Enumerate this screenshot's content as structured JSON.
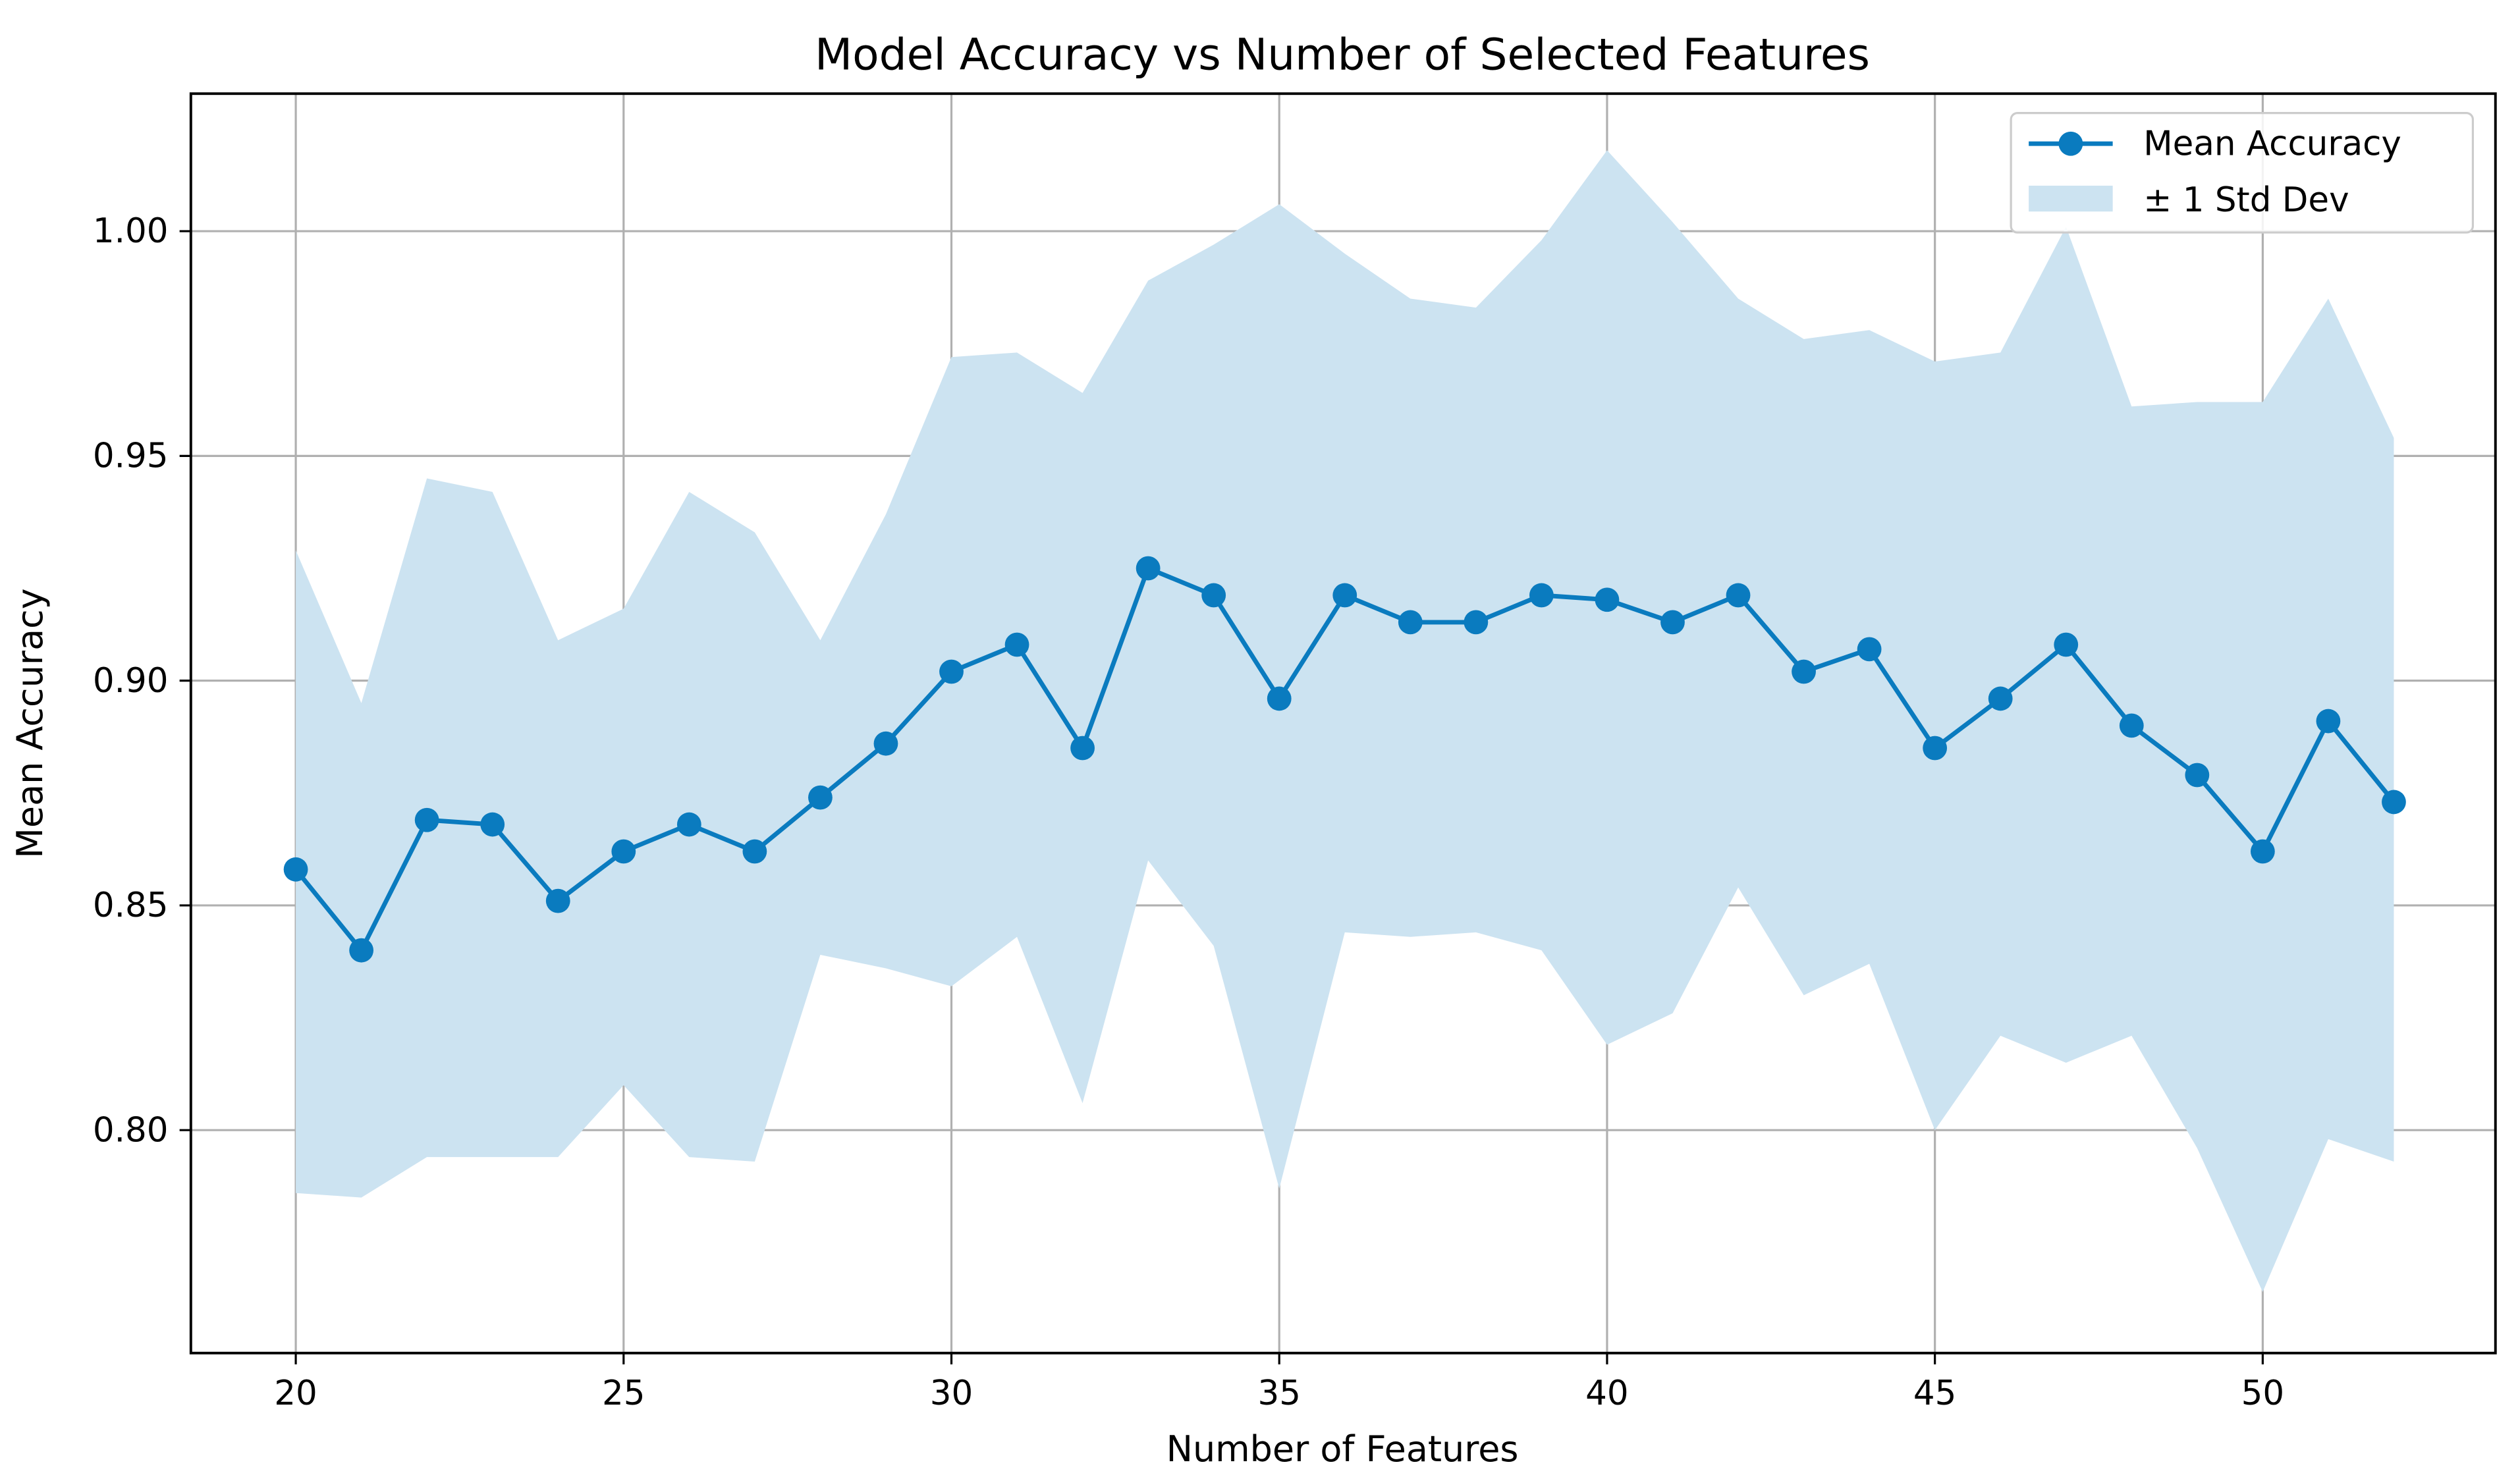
{
  "chart_data": {
    "type": "line",
    "title": "Model Accuracy vs Number of Selected Features",
    "xlabel": "Number of Features",
    "ylabel": "Mean Accuracy",
    "xlim": [
      18.4,
      53.55
    ],
    "ylim": [
      0.7504,
      1.0306
    ],
    "xticks": [
      20,
      25,
      30,
      35,
      40,
      45,
      50
    ],
    "xtick_labels": [
      "20",
      "25",
      "30",
      "35",
      "40",
      "45",
      "50"
    ],
    "yticks": [
      0.8,
      0.85,
      0.9,
      0.95,
      1.0
    ],
    "ytick_labels": [
      "0.80",
      "0.85",
      "0.90",
      "0.95",
      "1.00"
    ],
    "grid": true,
    "legend_placement": "top-right",
    "x": [
      20,
      21,
      22,
      23,
      24,
      25,
      26,
      27,
      28,
      29,
      30,
      31,
      32,
      33,
      34,
      35,
      36,
      37,
      38,
      39,
      40,
      41,
      42,
      43,
      44,
      45,
      46,
      47,
      48,
      49,
      50,
      51,
      52
    ],
    "series": [
      {
        "name": "Mean Accuracy",
        "color": "#0a7bbf",
        "marker": "circle",
        "values": [
          0.858,
          0.84,
          0.869,
          0.868,
          0.851,
          0.862,
          0.868,
          0.862,
          0.874,
          0.886,
          0.902,
          0.908,
          0.885,
          0.925,
          0.919,
          0.896,
          0.919,
          0.913,
          0.913,
          0.919,
          0.918,
          0.913,
          0.919,
          0.902,
          0.907,
          0.885,
          0.896,
          0.908,
          0.89,
          0.879,
          0.862,
          0.891,
          0.873
        ]
      }
    ],
    "band": {
      "name": "± 1 Std Dev",
      "color": "#cce3f1",
      "upper": [
        0.929,
        0.895,
        0.945,
        0.942,
        0.909,
        0.916,
        0.942,
        0.933,
        0.909,
        0.937,
        0.972,
        0.973,
        0.964,
        0.989,
        0.997,
        1.006,
        0.995,
        0.985,
        0.983,
        0.998,
        1.018,
        1.002,
        0.985,
        0.976,
        0.978,
        0.971,
        0.973,
        1.001,
        0.961,
        0.962,
        0.962,
        0.985,
        0.954
      ],
      "lower": [
        0.786,
        0.785,
        0.794,
        0.794,
        0.794,
        0.81,
        0.794,
        0.793,
        0.839,
        0.836,
        0.832,
        0.843,
        0.806,
        0.86,
        0.841,
        0.787,
        0.844,
        0.843,
        0.844,
        0.84,
        0.819,
        0.826,
        0.854,
        0.83,
        0.837,
        0.8,
        0.821,
        0.815,
        0.821,
        0.796,
        0.764,
        0.798,
        0.793
      ]
    }
  }
}
